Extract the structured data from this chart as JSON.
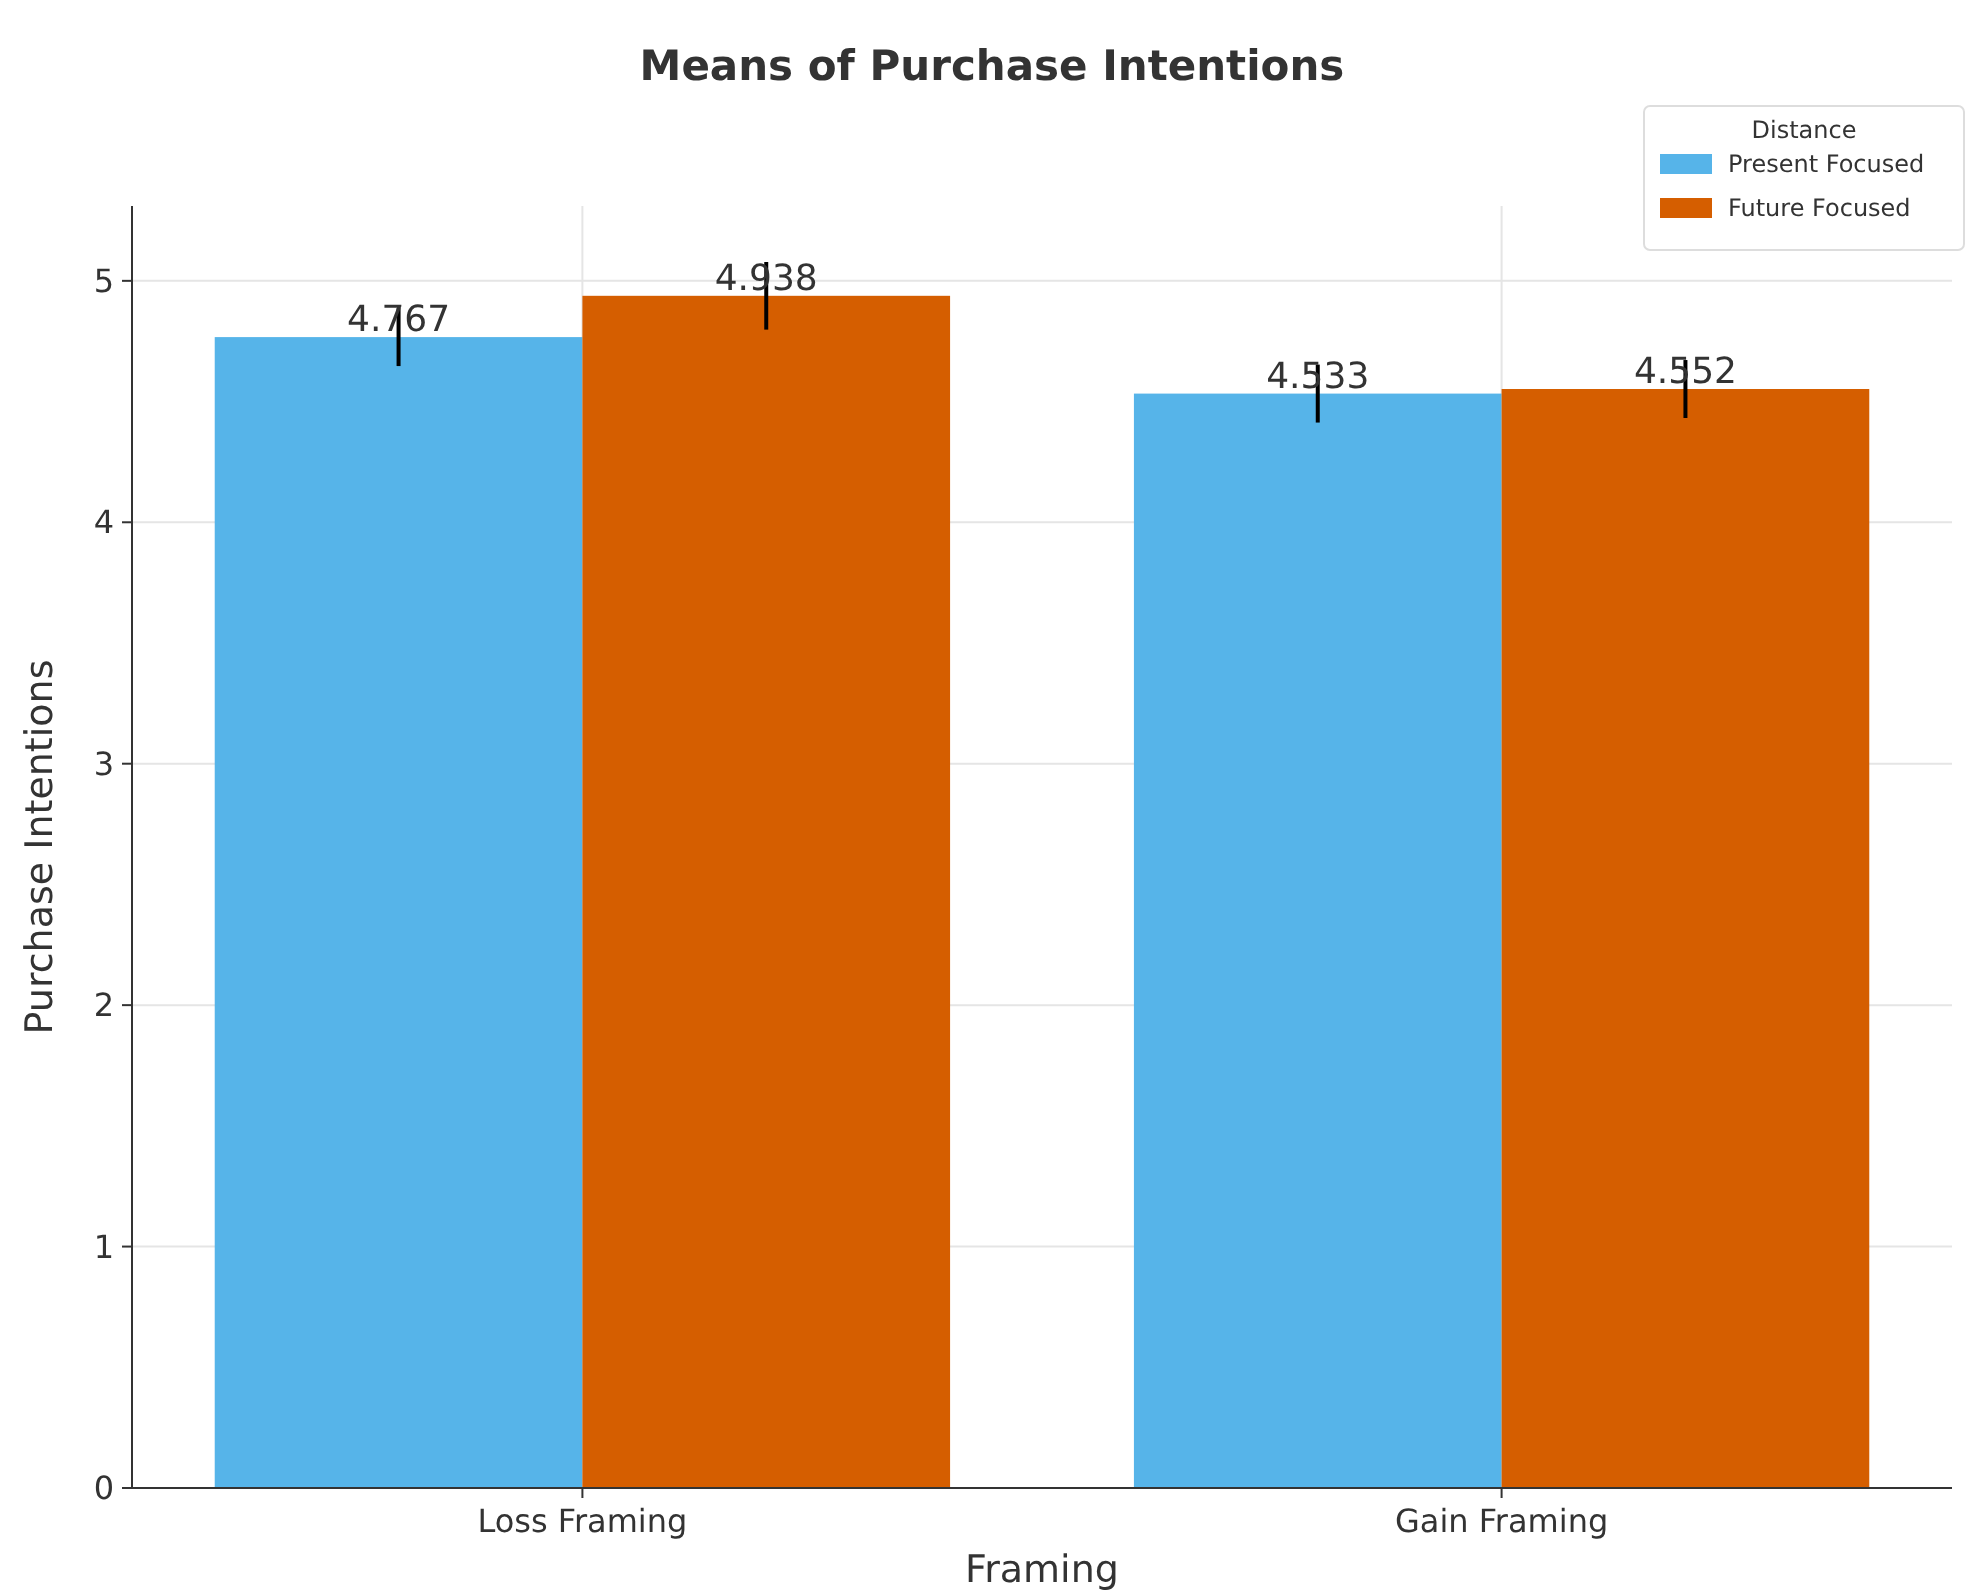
{
  "chart_data": {
    "type": "bar",
    "title": "Means of Purchase Intentions",
    "xlabel": "Framing",
    "ylabel": "Purchase Intentions",
    "legend_title": "Distance",
    "categories": [
      "Loss Framing",
      "Gain Framing"
    ],
    "series": [
      {
        "name": "Present Focused",
        "color": "#56b4e9",
        "values": [
          4.767,
          4.533
        ],
        "errors": [
          0.12,
          0.12
        ]
      },
      {
        "name": "Future Focused",
        "color": "#d55e00",
        "values": [
          4.938,
          4.552
        ],
        "errors": [
          0.14,
          0.12
        ]
      }
    ],
    "ylim": [
      0,
      5.31
    ],
    "yticks": [
      0,
      1,
      2,
      3,
      4,
      5
    ],
    "grid": true,
    "legend": "top right",
    "data_labels": true
  }
}
